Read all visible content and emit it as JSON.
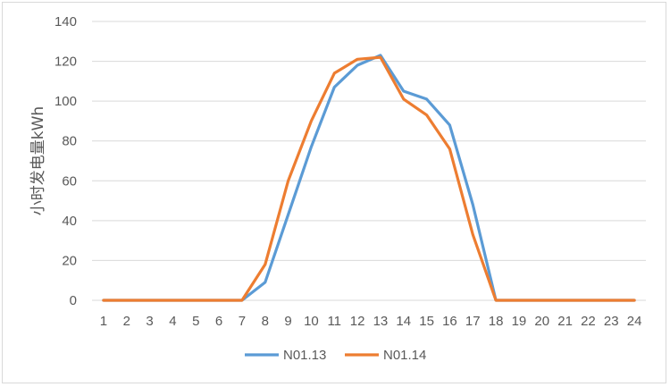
{
  "chart_data": {
    "type": "line",
    "title": "",
    "xlabel": "",
    "ylabel": "小时发电量kWh",
    "categories": [
      "1",
      "2",
      "3",
      "4",
      "5",
      "6",
      "7",
      "8",
      "9",
      "10",
      "11",
      "12",
      "13",
      "14",
      "15",
      "16",
      "17",
      "18",
      "19",
      "20",
      "21",
      "22",
      "23",
      "24"
    ],
    "ylim": [
      0,
      140
    ],
    "yticks": [
      0,
      20,
      40,
      60,
      80,
      100,
      120,
      140
    ],
    "grid": true,
    "legend_position": "bottom",
    "series": [
      {
        "name": "N01.13",
        "color": "#5b9bd5",
        "values": [
          0,
          0,
          0,
          0,
          0,
          0,
          0,
          9,
          43,
          77,
          107,
          118,
          123,
          105,
          101,
          88,
          48,
          0,
          0,
          0,
          0,
          0,
          0,
          0
        ]
      },
      {
        "name": "N01.14",
        "color": "#ed7d31",
        "values": [
          0,
          0,
          0,
          0,
          0,
          0,
          0,
          18,
          60,
          90,
          114,
          121,
          122,
          101,
          93,
          76,
          33,
          0,
          0,
          0,
          0,
          0,
          0,
          0
        ]
      }
    ]
  }
}
